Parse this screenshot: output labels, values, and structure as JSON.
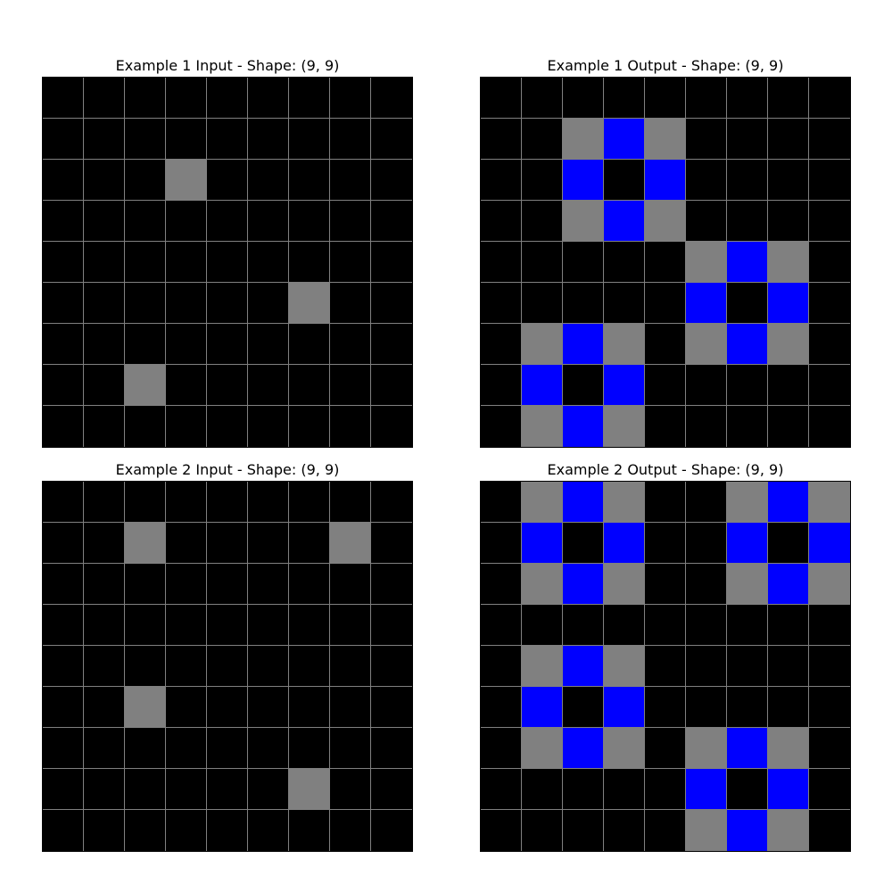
{
  "palette": {
    "0": "#000000",
    "1": "#0000ff",
    "5": "#808080"
  },
  "grid_line_color": "#808080",
  "panels": [
    {
      "title": "Example 1 Input - Shape: (9, 9)",
      "grid": [
        [
          0,
          0,
          0,
          0,
          0,
          0,
          0,
          0,
          0
        ],
        [
          0,
          0,
          0,
          0,
          0,
          0,
          0,
          0,
          0
        ],
        [
          0,
          0,
          0,
          5,
          0,
          0,
          0,
          0,
          0
        ],
        [
          0,
          0,
          0,
          0,
          0,
          0,
          0,
          0,
          0
        ],
        [
          0,
          0,
          0,
          0,
          0,
          0,
          0,
          0,
          0
        ],
        [
          0,
          0,
          0,
          0,
          0,
          0,
          5,
          0,
          0
        ],
        [
          0,
          0,
          0,
          0,
          0,
          0,
          0,
          0,
          0
        ],
        [
          0,
          0,
          5,
          0,
          0,
          0,
          0,
          0,
          0
        ],
        [
          0,
          0,
          0,
          0,
          0,
          0,
          0,
          0,
          0
        ]
      ]
    },
    {
      "title": "Example 1 Output - Shape: (9, 9)",
      "grid": [
        [
          0,
          0,
          0,
          0,
          0,
          0,
          0,
          0,
          0
        ],
        [
          0,
          0,
          5,
          1,
          5,
          0,
          0,
          0,
          0
        ],
        [
          0,
          0,
          1,
          0,
          1,
          0,
          0,
          0,
          0
        ],
        [
          0,
          0,
          5,
          1,
          5,
          0,
          0,
          0,
          0
        ],
        [
          0,
          0,
          0,
          0,
          0,
          5,
          1,
          5,
          0
        ],
        [
          0,
          0,
          0,
          0,
          0,
          1,
          0,
          1,
          0
        ],
        [
          0,
          5,
          1,
          5,
          0,
          5,
          1,
          5,
          0
        ],
        [
          0,
          1,
          0,
          1,
          0,
          0,
          0,
          0,
          0
        ],
        [
          0,
          5,
          1,
          5,
          0,
          0,
          0,
          0,
          0
        ]
      ]
    },
    {
      "title": "Example 2 Input - Shape: (9, 9)",
      "grid": [
        [
          0,
          0,
          0,
          0,
          0,
          0,
          0,
          0,
          0
        ],
        [
          0,
          0,
          5,
          0,
          0,
          0,
          0,
          5,
          0
        ],
        [
          0,
          0,
          0,
          0,
          0,
          0,
          0,
          0,
          0
        ],
        [
          0,
          0,
          0,
          0,
          0,
          0,
          0,
          0,
          0
        ],
        [
          0,
          0,
          0,
          0,
          0,
          0,
          0,
          0,
          0
        ],
        [
          0,
          0,
          5,
          0,
          0,
          0,
          0,
          0,
          0
        ],
        [
          0,
          0,
          0,
          0,
          0,
          0,
          0,
          0,
          0
        ],
        [
          0,
          0,
          0,
          0,
          0,
          0,
          5,
          0,
          0
        ],
        [
          0,
          0,
          0,
          0,
          0,
          0,
          0,
          0,
          0
        ]
      ]
    },
    {
      "title": "Example 2 Output - Shape: (9, 9)",
      "grid": [
        [
          0,
          5,
          1,
          5,
          0,
          0,
          5,
          1,
          5
        ],
        [
          0,
          1,
          0,
          1,
          0,
          0,
          1,
          0,
          1
        ],
        [
          0,
          5,
          1,
          5,
          0,
          0,
          5,
          1,
          5
        ],
        [
          0,
          0,
          0,
          0,
          0,
          0,
          0,
          0,
          0
        ],
        [
          0,
          5,
          1,
          5,
          0,
          0,
          0,
          0,
          0
        ],
        [
          0,
          1,
          0,
          1,
          0,
          0,
          0,
          0,
          0
        ],
        [
          0,
          5,
          1,
          5,
          0,
          5,
          1,
          5,
          0
        ],
        [
          0,
          0,
          0,
          0,
          0,
          1,
          0,
          1,
          0
        ],
        [
          0,
          0,
          0,
          0,
          0,
          5,
          1,
          5,
          0
        ]
      ]
    }
  ]
}
